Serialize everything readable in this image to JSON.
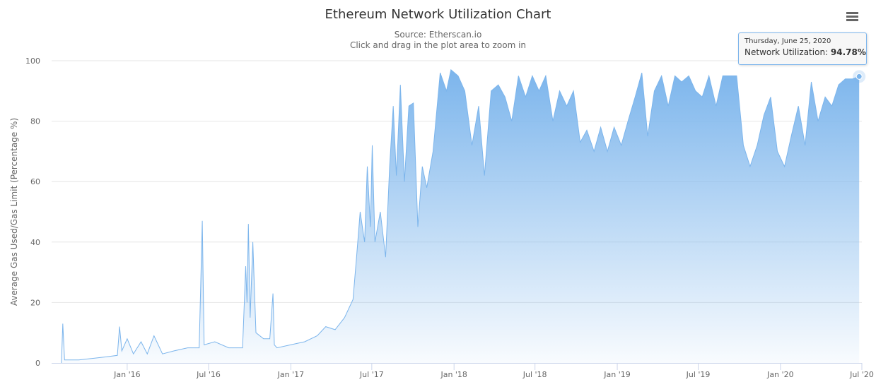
{
  "chart_data": {
    "type": "area",
    "title": "Ethereum Network Utilization Chart",
    "subtitle": [
      "Source: Etherscan.io",
      "Click and drag in the plot area to zoom in"
    ],
    "ylabel": "Average Gas Used/Gas Limit (Percentage %)",
    "xlabel": "",
    "ylim": [
      0,
      100
    ],
    "yticks": [
      0,
      20,
      40,
      60,
      80,
      100
    ],
    "xlim": [
      "2015-08-07",
      "2020-06-30"
    ],
    "xtick_labels": [
      "Jan '16",
      "Jul '16",
      "Jan '17",
      "Jul '17",
      "Jan '18",
      "Jul '18",
      "Jan '19",
      "Jul '19",
      "Jan '20",
      "Jul '20"
    ],
    "grid": true,
    "legend": "none",
    "series": [
      {
        "color": "#7cb5ec",
        "points": [
          [
            "2015-08-07",
            0
          ],
          [
            "2015-08-10",
            13
          ],
          [
            "2015-08-14",
            1
          ],
          [
            "2015-09-15",
            1
          ],
          [
            "2015-10-15",
            1.5
          ],
          [
            "2015-11-15",
            2
          ],
          [
            "2015-12-10",
            2.5
          ],
          [
            "2015-12-15",
            12
          ],
          [
            "2015-12-20",
            4
          ],
          [
            "2016-01-01",
            8
          ],
          [
            "2016-01-15",
            3
          ],
          [
            "2016-02-01",
            7
          ],
          [
            "2016-02-15",
            3
          ],
          [
            "2016-03-01",
            9
          ],
          [
            "2016-03-20",
            3
          ],
          [
            "2016-04-15",
            4
          ],
          [
            "2016-05-15",
            5
          ],
          [
            "2016-06-10",
            5
          ],
          [
            "2016-06-17",
            47
          ],
          [
            "2016-06-21",
            6
          ],
          [
            "2016-07-15",
            7
          ],
          [
            "2016-08-15",
            5
          ],
          [
            "2016-09-15",
            5
          ],
          [
            "2016-09-22",
            32
          ],
          [
            "2016-09-25",
            20
          ],
          [
            "2016-09-28",
            46
          ],
          [
            "2016-10-02",
            15
          ],
          [
            "2016-10-08",
            40
          ],
          [
            "2016-10-15",
            10
          ],
          [
            "2016-11-01",
            8
          ],
          [
            "2016-11-15",
            8
          ],
          [
            "2016-11-22",
            23
          ],
          [
            "2016-11-25",
            6
          ],
          [
            "2016-12-01",
            5
          ],
          [
            "2017-01-01",
            6
          ],
          [
            "2017-02-01",
            7
          ],
          [
            "2017-03-01",
            9
          ],
          [
            "2017-03-20",
            12
          ],
          [
            "2017-04-10",
            11
          ],
          [
            "2017-05-01",
            15
          ],
          [
            "2017-05-20",
            21
          ],
          [
            "2017-05-28",
            35
          ],
          [
            "2017-06-05",
            50
          ],
          [
            "2017-06-15",
            40
          ],
          [
            "2017-06-21",
            65
          ],
          [
            "2017-06-28",
            45
          ],
          [
            "2017-07-02",
            72
          ],
          [
            "2017-07-08",
            40
          ],
          [
            "2017-07-20",
            50
          ],
          [
            "2017-08-01",
            35
          ],
          [
            "2017-08-10",
            65
          ],
          [
            "2017-08-18",
            85
          ],
          [
            "2017-08-25",
            62
          ],
          [
            "2017-09-03",
            92
          ],
          [
            "2017-09-12",
            60
          ],
          [
            "2017-09-22",
            85
          ],
          [
            "2017-10-02",
            86
          ],
          [
            "2017-10-12",
            45
          ],
          [
            "2017-10-22",
            65
          ],
          [
            "2017-11-01",
            58
          ],
          [
            "2017-11-15",
            70
          ],
          [
            "2017-12-01",
            96
          ],
          [
            "2017-12-15",
            90
          ],
          [
            "2017-12-25",
            97
          ],
          [
            "2018-01-10",
            95
          ],
          [
            "2018-01-25",
            90
          ],
          [
            "2018-02-10",
            72
          ],
          [
            "2018-02-25",
            85
          ],
          [
            "2018-03-10",
            62
          ],
          [
            "2018-03-25",
            90
          ],
          [
            "2018-04-10",
            92
          ],
          [
            "2018-04-25",
            88
          ],
          [
            "2018-05-10",
            80
          ],
          [
            "2018-05-25",
            95
          ],
          [
            "2018-06-10",
            88
          ],
          [
            "2018-06-25",
            95
          ],
          [
            "2018-07-10",
            90
          ],
          [
            "2018-07-25",
            95
          ],
          [
            "2018-08-10",
            80
          ],
          [
            "2018-08-25",
            90
          ],
          [
            "2018-09-10",
            85
          ],
          [
            "2018-09-25",
            90
          ],
          [
            "2018-10-10",
            73
          ],
          [
            "2018-10-25",
            77
          ],
          [
            "2018-11-10",
            70
          ],
          [
            "2018-11-25",
            78
          ],
          [
            "2018-12-10",
            70
          ],
          [
            "2018-12-25",
            78
          ],
          [
            "2019-01-10",
            72
          ],
          [
            "2019-01-25",
            80
          ],
          [
            "2019-02-10",
            88
          ],
          [
            "2019-02-25",
            96
          ],
          [
            "2019-03-10",
            75
          ],
          [
            "2019-03-25",
            90
          ],
          [
            "2019-04-10",
            95
          ],
          [
            "2019-04-25",
            85
          ],
          [
            "2019-05-10",
            95
          ],
          [
            "2019-05-25",
            93
          ],
          [
            "2019-06-10",
            95
          ],
          [
            "2019-06-25",
            90
          ],
          [
            "2019-07-10",
            88
          ],
          [
            "2019-07-25",
            95
          ],
          [
            "2019-08-10",
            85
          ],
          [
            "2019-08-25",
            95
          ],
          [
            "2019-09-10",
            95
          ],
          [
            "2019-09-25",
            95
          ],
          [
            "2019-10-10",
            72
          ],
          [
            "2019-10-25",
            65
          ],
          [
            "2019-11-10",
            72
          ],
          [
            "2019-11-25",
            82
          ],
          [
            "2019-12-10",
            88
          ],
          [
            "2019-12-25",
            70
          ],
          [
            "2020-01-10",
            65
          ],
          [
            "2020-01-25",
            75
          ],
          [
            "2020-02-10",
            85
          ],
          [
            "2020-02-25",
            72
          ],
          [
            "2020-03-10",
            93
          ],
          [
            "2020-03-25",
            80
          ],
          [
            "2020-04-10",
            88
          ],
          [
            "2020-04-25",
            85
          ],
          [
            "2020-05-10",
            92
          ],
          [
            "2020-05-25",
            94
          ],
          [
            "2020-06-10",
            94
          ],
          [
            "2020-06-25",
            94.78
          ]
        ]
      }
    ],
    "tooltip": {
      "date": "Thursday, June 25, 2020",
      "label": "Network Utilization:",
      "value": "94.78%",
      "point": [
        "2020-06-25",
        94.78
      ]
    }
  },
  "menu": {
    "icon": "hamburger-menu-icon"
  }
}
